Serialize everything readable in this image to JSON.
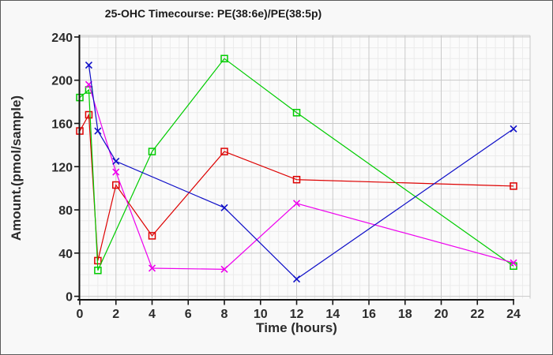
{
  "window": {
    "background": "#f8f8f8",
    "border_color": "#5a5a5a"
  },
  "colors": {
    "plot_background": "#fbfbfb",
    "major_grid": "#c9c9c9",
    "minor_grid": "#ebebeb",
    "axis": "#141414",
    "tick_text": "#2b2b2b"
  },
  "chart_data": {
    "type": "line",
    "title": "25-OHC Timecourse: PE(38:6e)/PE(38:5p)",
    "xlabel": "Time (hours)",
    "ylabel": "Amount.(pmol/sample)",
    "xlim": [
      0,
      24.9
    ],
    "ylim": [
      0,
      240
    ],
    "x_major_ticks": [
      0,
      2,
      4,
      6,
      8,
      10,
      12,
      14,
      16,
      18,
      20,
      22,
      24
    ],
    "y_major_ticks": [
      0,
      40,
      80,
      120,
      160,
      200,
      240
    ],
    "x_minor_step": 0.5,
    "y_minor_step": 10,
    "grid": "major and minor gridlines on",
    "legend": "none",
    "series": [
      {
        "name": "red-squares",
        "color": "#dd0000",
        "marker": "square",
        "points": [
          [
            0,
            153
          ],
          [
            0.5,
            168
          ],
          [
            1,
            33
          ],
          [
            2,
            103
          ],
          [
            4,
            56
          ],
          [
            8,
            134
          ],
          [
            12,
            108
          ],
          [
            24,
            102
          ]
        ]
      },
      {
        "name": "green-squares",
        "color": "#00cc00",
        "marker": "square",
        "points": [
          [
            0,
            184
          ],
          [
            0.5,
            191
          ],
          [
            1,
            24
          ],
          [
            4,
            134
          ],
          [
            8,
            220
          ],
          [
            12,
            170
          ],
          [
            24,
            28
          ]
        ]
      },
      {
        "name": "magenta-x",
        "color": "#ee00ee",
        "marker": "x",
        "points": [
          [
            0.5,
            196
          ],
          [
            2,
            115
          ],
          [
            4,
            26
          ],
          [
            8,
            25
          ],
          [
            12,
            86
          ],
          [
            24,
            31
          ]
        ]
      },
      {
        "name": "blue-x",
        "color": "#0f0fc8",
        "marker": "x",
        "points": [
          [
            0.5,
            214
          ],
          [
            1,
            153
          ],
          [
            2,
            125
          ],
          [
            8,
            82
          ],
          [
            12,
            16
          ],
          [
            24,
            155
          ]
        ]
      }
    ]
  }
}
